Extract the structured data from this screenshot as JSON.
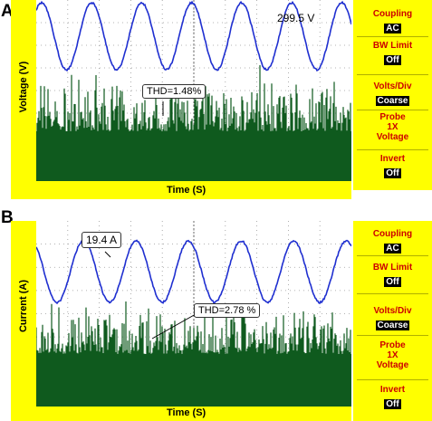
{
  "panels": [
    {
      "letter": "A",
      "ylabel": "Voltage (V)",
      "xlabel": "Time (S)",
      "amplitude_label": "299.5 V",
      "thd_label": "THD=1.48%",
      "menu": [
        {
          "title": "Coupling",
          "value": "AC"
        },
        {
          "title": "BW Limit",
          "value": "Off"
        },
        {
          "title": "Volts/Div",
          "value": "Coarse"
        },
        {
          "title": "Probe\n1X\nVoltage",
          "value": ""
        },
        {
          "title": "Invert",
          "value": "Off"
        }
      ]
    },
    {
      "letter": "B",
      "ylabel": "Current (A)",
      "xlabel": "Time (S)",
      "amplitude_label": "19.4 A",
      "thd_label": "THD=2.78 %",
      "menu": [
        {
          "title": "Coupling",
          "value": "AC"
        },
        {
          "title": "BW Limit",
          "value": "Off"
        },
        {
          "title": "Volts/Div",
          "value": "Coarse"
        },
        {
          "title": "Probe\n1X\nVoltage",
          "value": ""
        },
        {
          "title": "Invert",
          "value": "Off"
        }
      ]
    }
  ],
  "colors": {
    "waveform": "#1f2fd0",
    "harmonics": "#0f5a1e",
    "yellow": "#ffff00",
    "menu_title": "#cc0000"
  },
  "chart_data": [
    {
      "type": "line",
      "title": "",
      "xlabel": "Time (S)",
      "ylabel": "Voltage (V)",
      "series": [
        {
          "values": {
            "waveform": "sinusoid",
            "amplitude": 299.5,
            "cycles_shown": 6
          }
        }
      ],
      "annotations": [
        "299.5 V",
        "THD=1.48%"
      ],
      "harmonic_spectrum": "noise band in lower half of screen",
      "grid": true
    },
    {
      "type": "line",
      "title": "",
      "xlabel": "Time (S)",
      "ylabel": "Current (A)",
      "series": [
        {
          "values": {
            "waveform": "sinusoid",
            "amplitude": 19.4,
            "cycles_shown": 6
          }
        }
      ],
      "annotations": [
        "19.4 A",
        "THD=2.78 %"
      ],
      "harmonic_spectrum": "noise band in lower half of screen",
      "grid": true
    }
  ]
}
